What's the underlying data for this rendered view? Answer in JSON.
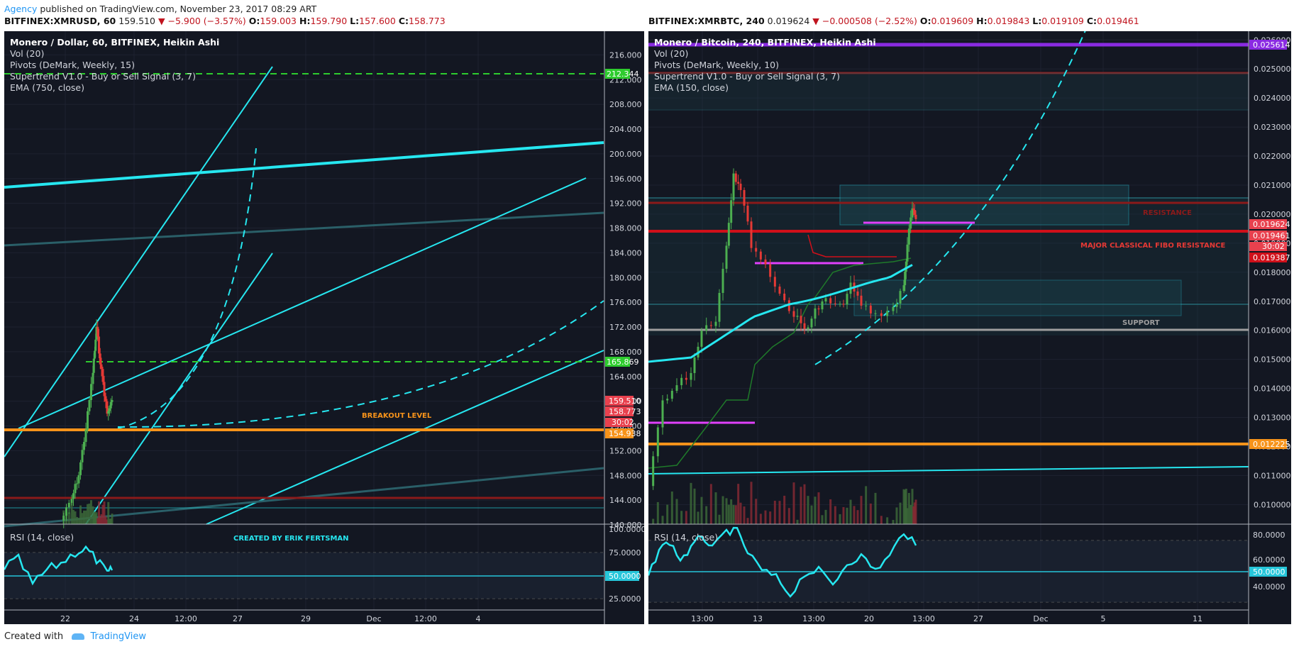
{
  "header": {
    "author": "Agency",
    "published": " published on TradingView.com, November 23, 2017 08:29 ART"
  },
  "left_chart": {
    "symbol_line": {
      "symbol": "BITFINEX:XMRUSD, 60",
      "price": "159.510",
      "change": "▼ −5.900 (−3.57%)",
      "o_label": "O:",
      "o": "159.003",
      "h_label": "H:",
      "h": "159.790",
      "l_label": "L:",
      "l": "157.600",
      "c_label": "C:",
      "c": "158.773"
    },
    "indicators": [
      "Monero / Dollar, 60, BITFINEX, Heikin Ashi",
      "Vol (20)",
      "Pivots (DeMark, Weekly, 15)",
      "Supertrend V1.0 - Buy or Sell Signal (3, 7)",
      "EMA (750, close)"
    ],
    "annotations": {
      "breakout": "BREAKOUT LEVEL",
      "created_by": "CREATED BY ERIK FERTSMAN"
    },
    "rsi_label": "RSI (14, close)",
    "price_labels": {
      "level_top": "212.344",
      "level_mid": "165.869",
      "last": "159.510",
      "close": "158.773",
      "timer": "30:02",
      "breakout": "154.938"
    },
    "rsi_labels": {
      "mid": "50.0000"
    }
  },
  "right_chart": {
    "symbol_line": {
      "symbol": "BITFINEX:XMRBTC, 240",
      "price": "0.019624",
      "change": "▼ −0.000508 (−2.52%)",
      "o_label": "O:",
      "o": "0.019609",
      "h_label": "H:",
      "h": "0.019843",
      "l_label": "L:",
      "l": "0.019109",
      "c_label": "C:",
      "c": "0.019461"
    },
    "indicators": [
      "Monero / Bitcoin, 240, BITFINEX, Heikin Ashi",
      "Vol (20)",
      "Pivots (DeMark, Weekly, 10)",
      "Supertrend V1.0 - Buy or Sell Signal (3, 7)",
      "EMA (150, close)"
    ],
    "annotations": {
      "resistance": "RESISTANCE",
      "fibo": "MAJOR CLASSICAL FIBO RESISTANCE",
      "support": "SUPPORT"
    },
    "rsi_label": "RSI (14, close)",
    "price_labels": {
      "level_top": "0.025614",
      "last": "0.019624",
      "close": "0.019461",
      "timer": "30:02",
      "red": "0.019387",
      "orange": "0.012225"
    },
    "rsi_labels": {
      "mid": "50.0000"
    }
  },
  "footer": {
    "created_with": "Created with",
    "brand": "TradingView"
  },
  "colors": {
    "background": "#131722",
    "cyan": "#26e7f0",
    "green_dashed": "#2ecc2e",
    "orange": "#f7931a",
    "red": "#d0101a",
    "magenta": "#e040fb",
    "purple": "#8a2be2"
  },
  "chart_data": [
    {
      "type": "candlestick",
      "title": "Monero / Dollar, 60, BITFINEX, Heikin Ashi",
      "y_ticks": [
        216,
        212,
        208,
        204,
        200,
        196,
        192,
        188,
        184,
        180,
        176,
        172,
        168,
        164,
        160,
        156,
        152,
        148,
        144,
        140
      ],
      "ylim": [
        140,
        218
      ],
      "x_ticks": [
        "22",
        "24",
        "12:00",
        "27",
        "29",
        "Dec",
        "12:00",
        "4"
      ],
      "levels": [
        {
          "name": "212.344",
          "value": 212.344,
          "style": "dashed",
          "color": "#2ecc2e"
        },
        {
          "name": "165.869",
          "value": 165.869,
          "style": "dashed",
          "color": "#2ecc2e"
        },
        {
          "name": "BREAKOUT LEVEL",
          "value": 154.938,
          "style": "solid",
          "color": "#f7931a"
        },
        {
          "value": 144.0,
          "style": "solid",
          "color": "#8b1a1a"
        }
      ],
      "last_price": 159.51,
      "close": 158.773,
      "rsi": {
        "label": "RSI (14, close)",
        "ticks": [
          100,
          75,
          50,
          25
        ],
        "mid": 50.0
      }
    },
    {
      "type": "candlestick",
      "title": "Monero / Bitcoin, 240, BITFINEX, Heikin Ashi",
      "y_ticks": [
        0.026,
        0.025,
        0.024,
        0.023,
        0.022,
        0.021,
        0.02,
        0.019,
        0.018,
        0.017,
        0.016,
        0.015,
        0.014,
        0.013,
        0.012,
        0.011,
        0.01
      ],
      "ylim": [
        0.0093,
        0.0263
      ],
      "x_ticks": [
        "13:00",
        "13",
        "13:00",
        "20",
        "13:00",
        "27",
        "Dec",
        "5",
        "11"
      ],
      "levels": [
        {
          "name": "0.025614",
          "value": 0.025614,
          "style": "solid",
          "color": "#8a2be2"
        },
        {
          "value": 0.0247,
          "style": "solid",
          "color": "#8b1a1a"
        },
        {
          "name": "RESISTANCE",
          "value": 0.0202,
          "style": "solid",
          "color": "#8b1a1a"
        },
        {
          "name": "MAJOR CLASSICAL FIBO RESISTANCE",
          "value": 0.0192,
          "style": "solid",
          "color": "#d0101a"
        },
        {
          "name": "SUPPORT",
          "value": 0.01607,
          "style": "solid",
          "color": "#9e9e9e"
        },
        {
          "name": "0.012225",
          "value": 0.012225,
          "style": "solid",
          "color": "#f7931a"
        }
      ],
      "last_price": 0.019624,
      "close": 0.019461,
      "rsi": {
        "label": "RSI (14, close)",
        "ticks": [
          80,
          60,
          50,
          40
        ],
        "mid": 50.0
      }
    }
  ]
}
